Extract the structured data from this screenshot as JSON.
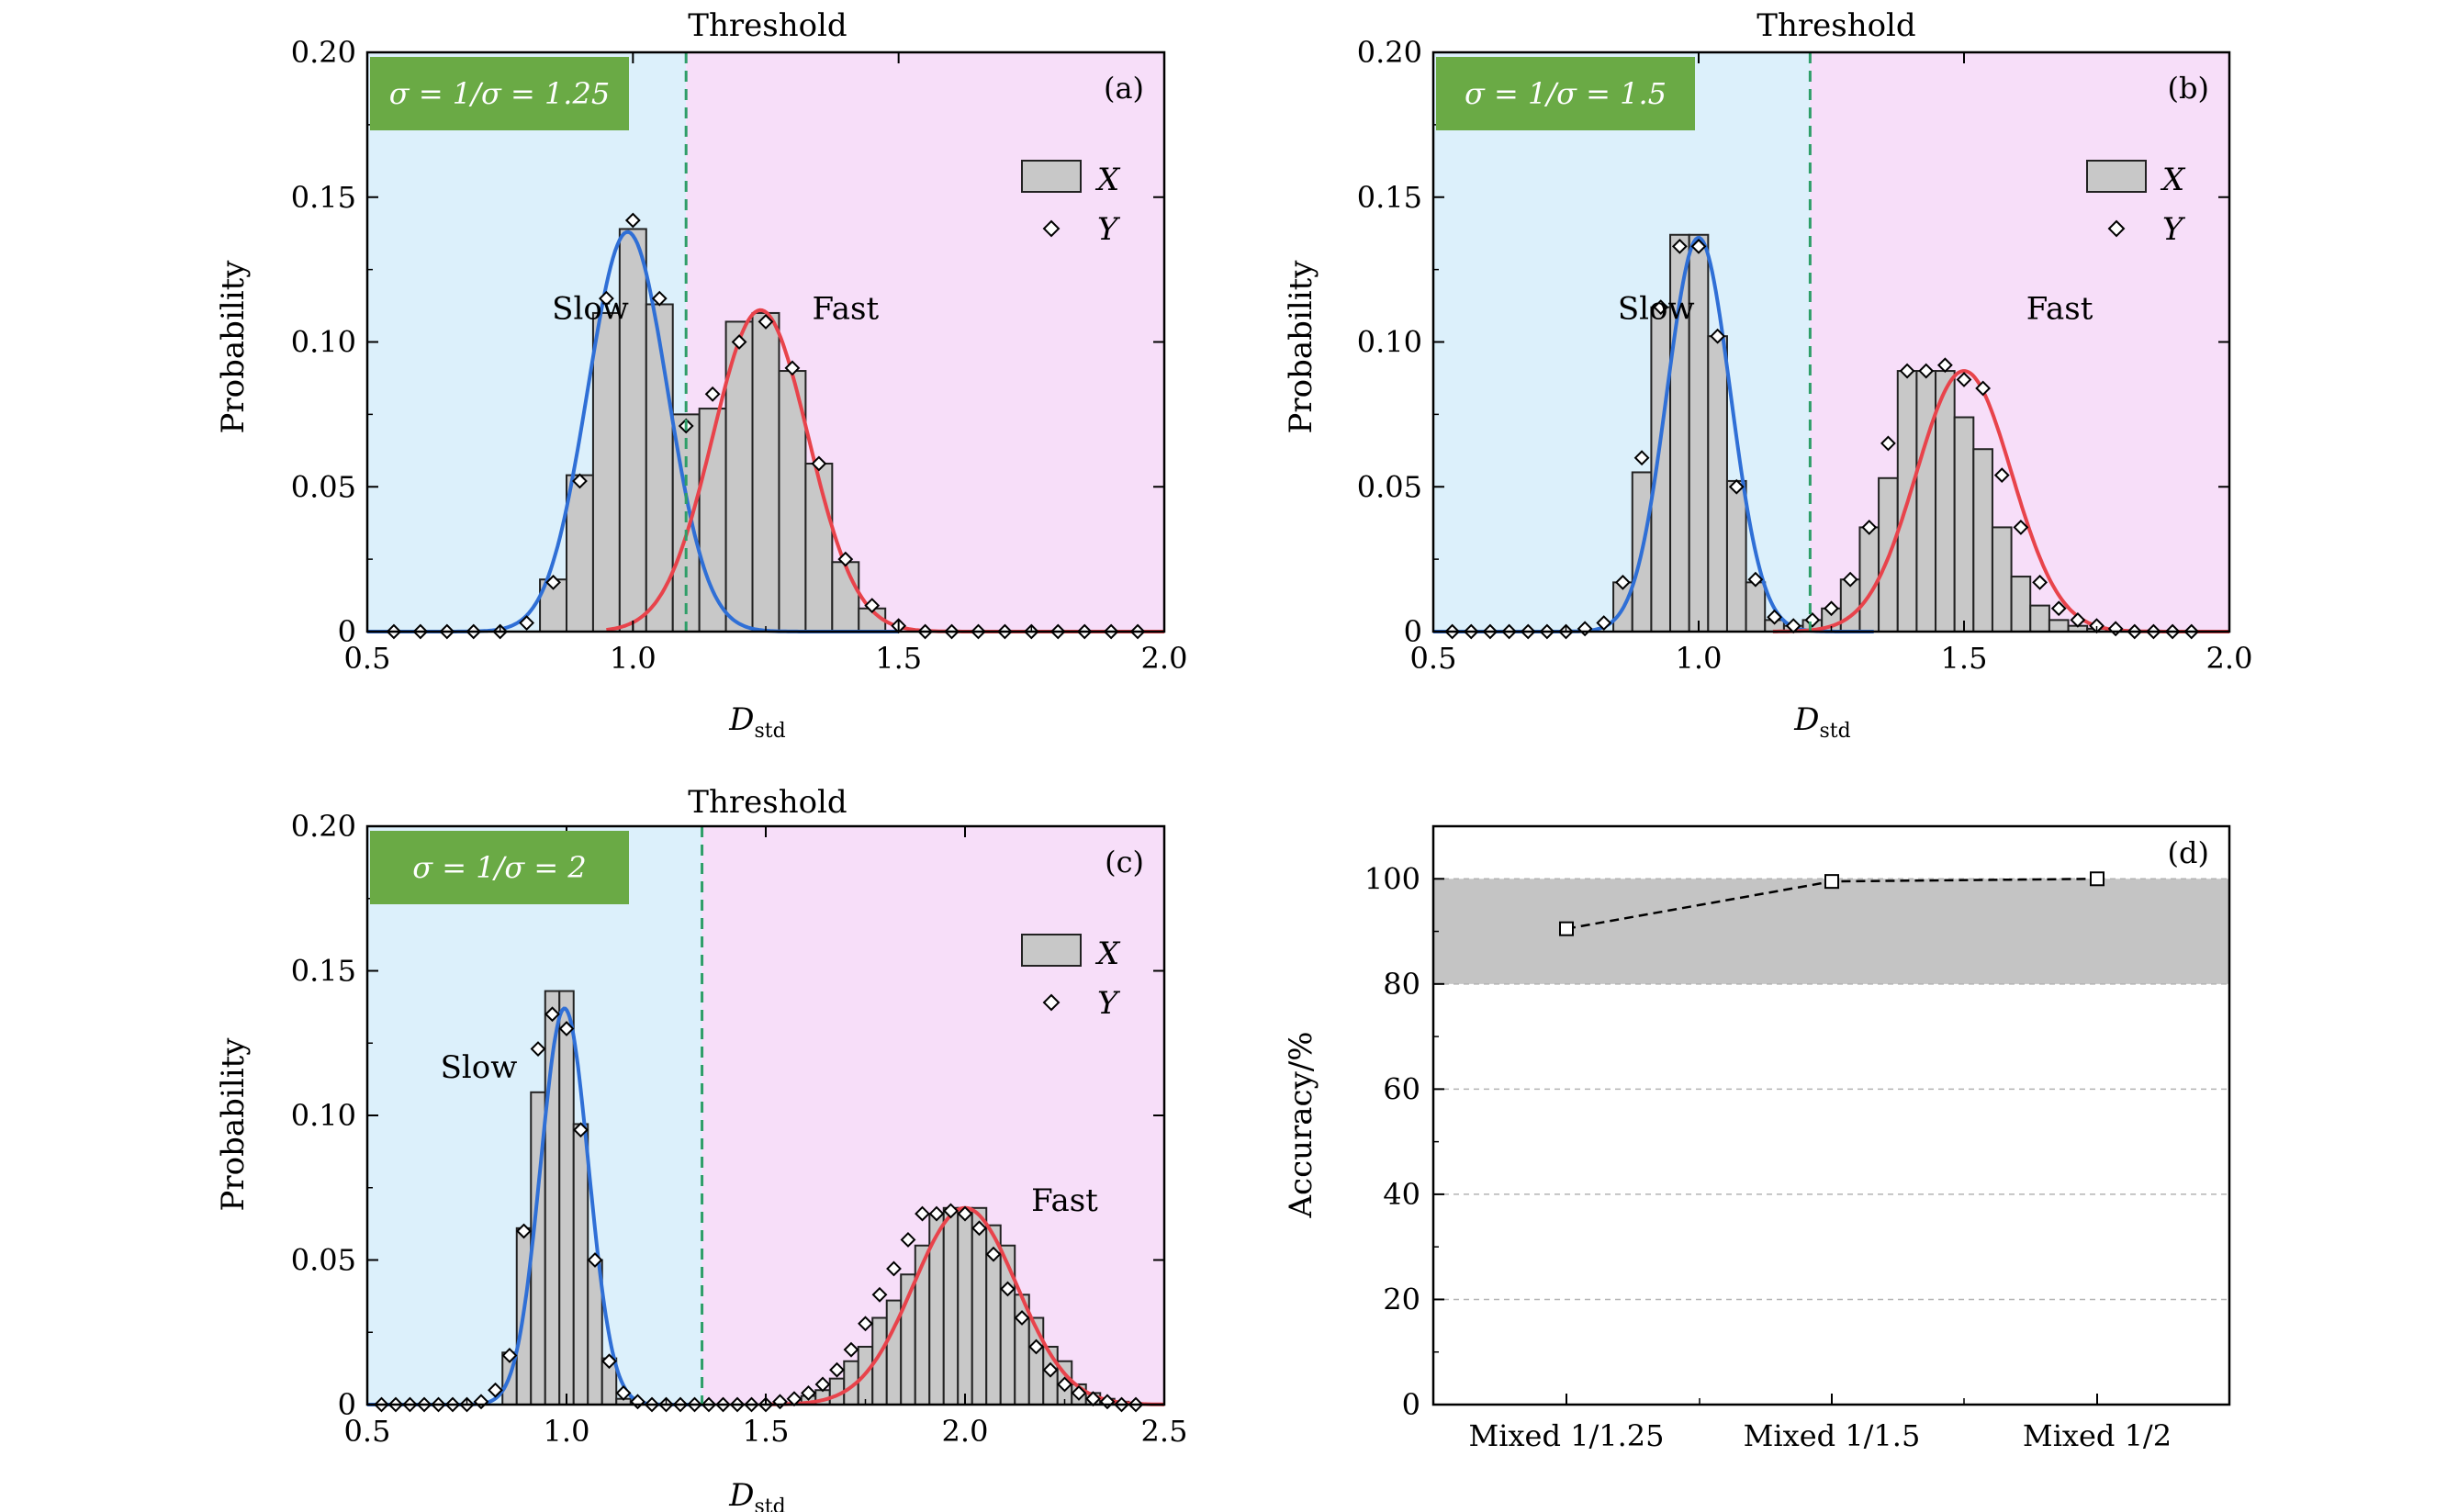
{
  "colors": {
    "slow_region": "#dcf0fb",
    "fast_region": "#f7def9",
    "bar_fill": "#c8c8c8",
    "bar_stroke": "#222222",
    "slow_curve": "#2f6fd6",
    "fast_curve": "#e8434b",
    "threshold": "#2e9e68",
    "badge": "#6aaa45",
    "accuracy_band": "#c4c4c4",
    "grid": "#b4b4b4"
  },
  "chart_data": [
    {
      "panel": "(a)",
      "type": "bar",
      "badge": "σ = 1/σ = 1.25",
      "threshold_label": "Threshold",
      "threshold_x": 1.1,
      "xlabel": "D",
      "xlabel_sub": "std",
      "ylabel": "Probability",
      "xlim": [
        0.5,
        2.0
      ],
      "ylim": [
        0,
        0.2
      ],
      "xticks": [
        0.5,
        1.0,
        1.5,
        2.0
      ],
      "xtick_labels": [
        "0.5",
        "1.0",
        "1.5",
        "2.0"
      ],
      "yticks": [
        0,
        0.05,
        0.1,
        0.15,
        0.2
      ],
      "ytick_labels": [
        "0",
        "0.05",
        "0.10",
        "0.15",
        "0.20"
      ],
      "slow_label": "Slow",
      "fast_label": "Fast",
      "slow_label_at": [
        0.92,
        0.108
      ],
      "fast_label_at": [
        1.4,
        0.108
      ],
      "legend": [
        "X",
        "Y"
      ],
      "bar_width": 0.05,
      "bars_x": [
        0.85,
        0.9,
        0.95,
        1.0,
        1.05,
        1.1,
        1.15,
        1.2,
        1.25,
        1.3,
        1.35,
        1.4,
        1.45
      ],
      "bars_y": [
        0.018,
        0.054,
        0.11,
        0.139,
        0.113,
        0.075,
        0.077,
        0.107,
        0.11,
        0.09,
        0.058,
        0.024,
        0.008
      ],
      "markers_x": [
        0.55,
        0.6,
        0.65,
        0.7,
        0.75,
        0.8,
        0.85,
        0.9,
        0.95,
        1.0,
        1.05,
        1.1,
        1.15,
        1.2,
        1.25,
        1.3,
        1.35,
        1.4,
        1.45,
        1.5,
        1.55,
        1.6,
        1.65,
        1.7,
        1.75,
        1.8,
        1.85,
        1.9,
        1.95
      ],
      "markers_y": [
        0,
        0,
        0,
        0,
        0,
        0.003,
        0.017,
        0.052,
        0.115,
        0.142,
        0.115,
        0.071,
        0.082,
        0.1,
        0.107,
        0.091,
        0.058,
        0.025,
        0.009,
        0.002,
        0,
        0,
        0,
        0,
        0,
        0,
        0,
        0,
        0
      ],
      "slow_fit": {
        "amp": 0.138,
        "mu": 0.99,
        "sigma": 0.075,
        "x": [
          0.5,
          1.5
        ]
      },
      "fast_fit": {
        "amp": 0.111,
        "mu": 1.24,
        "sigma": 0.09,
        "x": [
          0.95,
          2.0
        ]
      }
    },
    {
      "panel": "(b)",
      "type": "bar",
      "badge": "σ = 1/σ = 1.5",
      "threshold_label": "Threshold",
      "threshold_x": 1.21,
      "xlabel": "D",
      "xlabel_sub": "std",
      "ylabel": "Probability",
      "xlim": [
        0.5,
        2.0
      ],
      "ylim": [
        0,
        0.2
      ],
      "xticks": [
        0.5,
        1.0,
        1.5,
        2.0
      ],
      "xtick_labels": [
        "0.5",
        "1.0",
        "1.5",
        "2.0"
      ],
      "yticks": [
        0,
        0.05,
        0.1,
        0.15,
        0.2
      ],
      "ytick_labels": [
        "0",
        "0.05",
        "0.10",
        "0.15",
        "0.20"
      ],
      "slow_label": "Slow",
      "fast_label": "Fast",
      "slow_label_at": [
        0.92,
        0.108
      ],
      "fast_label_at": [
        1.68,
        0.108
      ],
      "legend": [
        "X",
        "Y"
      ],
      "bar_width": 0.0357,
      "bars_x": [
        0.8571,
        0.8929,
        0.9286,
        0.9643,
        1.0,
        1.0357,
        1.0714,
        1.1071,
        1.1429,
        1.1786,
        1.2143,
        1.25,
        1.2857,
        1.3214,
        1.3571,
        1.3929,
        1.4286,
        1.4643,
        1.5,
        1.5357,
        1.5714,
        1.6071,
        1.6429,
        1.6786,
        1.7143,
        1.75
      ],
      "bars_y": [
        0.017,
        0.055,
        0.112,
        0.137,
        0.137,
        0.102,
        0.052,
        0.017,
        0.004,
        0.002,
        0.004,
        0.008,
        0.018,
        0.036,
        0.053,
        0.09,
        0.09,
        0.09,
        0.074,
        0.063,
        0.036,
        0.019,
        0.009,
        0.004,
        0.002,
        0.001
      ],
      "markers_x": [
        0.5357,
        0.5714,
        0.6071,
        0.6429,
        0.6786,
        0.7143,
        0.75,
        0.7857,
        0.8214,
        0.8571,
        0.8929,
        0.9286,
        0.9643,
        1.0,
        1.0357,
        1.0714,
        1.1071,
        1.1429,
        1.1786,
        1.2143,
        1.25,
        1.2857,
        1.3214,
        1.3571,
        1.3929,
        1.4286,
        1.4643,
        1.5,
        1.5357,
        1.5714,
        1.6071,
        1.6429,
        1.6786,
        1.7143,
        1.75,
        1.7857,
        1.8214,
        1.8571,
        1.8929,
        1.9286
      ],
      "markers_y": [
        0,
        0,
        0,
        0,
        0,
        0,
        0,
        0.001,
        0.003,
        0.017,
        0.06,
        0.112,
        0.133,
        0.133,
        0.102,
        0.05,
        0.018,
        0.005,
        0.002,
        0.004,
        0.008,
        0.018,
        0.036,
        0.065,
        0.09,
        0.09,
        0.092,
        0.087,
        0.084,
        0.054,
        0.036,
        0.017,
        0.008,
        0.004,
        0.002,
        0.001,
        0,
        0,
        0,
        0
      ],
      "slow_fit": {
        "amp": 0.136,
        "mu": 1.0,
        "sigma": 0.06,
        "x": [
          0.5,
          1.33
        ]
      },
      "fast_fit": {
        "amp": 0.09,
        "mu": 1.5,
        "sigma": 0.09,
        "x": [
          1.14,
          2.0
        ]
      }
    },
    {
      "panel": "(c)",
      "type": "bar",
      "badge": "σ = 1/σ = 2",
      "threshold_label": "Threshold",
      "threshold_x": 1.34,
      "xlabel": "D",
      "xlabel_sub": "std",
      "ylabel": "Probability",
      "xlim": [
        0.5,
        2.5
      ],
      "ylim": [
        0,
        0.2
      ],
      "xticks": [
        0.5,
        1.0,
        1.5,
        2.0,
        2.5
      ],
      "xtick_labels": [
        "0.5",
        "1.0",
        "1.5",
        "2.0",
        "2.5"
      ],
      "yticks": [
        0,
        0.05,
        0.1,
        0.15,
        0.2
      ],
      "ytick_labels": [
        "0",
        "0.05",
        "0.10",
        "0.15",
        "0.20"
      ],
      "slow_label": "Slow",
      "fast_label": "Fast",
      "slow_label_at": [
        0.78,
        0.113
      ],
      "fast_label_at": [
        2.25,
        0.067
      ],
      "legend": [
        "X",
        "Y"
      ],
      "bar_width": 0.0357,
      "bars_x": [
        0.8571,
        0.8929,
        0.9286,
        0.9643,
        1.0,
        1.0357,
        1.0714,
        1.1071,
        1.1429,
        1.6071,
        1.6429,
        1.6786,
        1.7143,
        1.75,
        1.7857,
        1.8214,
        1.8571,
        1.8929,
        1.9286,
        1.9643,
        2.0,
        2.0357,
        2.0714,
        2.1071,
        2.1429,
        2.1786,
        2.2143,
        2.25,
        2.2857,
        2.3214,
        2.3571,
        2.3929
      ],
      "bars_y": [
        0.018,
        0.061,
        0.108,
        0.143,
        0.143,
        0.097,
        0.05,
        0.016,
        0.002,
        0.003,
        0.005,
        0.009,
        0.015,
        0.02,
        0.03,
        0.036,
        0.045,
        0.055,
        0.066,
        0.068,
        0.068,
        0.068,
        0.062,
        0.055,
        0.038,
        0.03,
        0.02,
        0.015,
        0.007,
        0.004,
        0.002,
        0.001
      ],
      "markers_x": [
        0.5357,
        0.5714,
        0.6071,
        0.6429,
        0.6786,
        0.7143,
        0.75,
        0.7857,
        0.8214,
        0.8571,
        0.8929,
        0.9286,
        0.9643,
        1.0,
        1.0357,
        1.0714,
        1.1071,
        1.1429,
        1.1786,
        1.2143,
        1.25,
        1.2857,
        1.3214,
        1.3571,
        1.3929,
        1.4286,
        1.4643,
        1.5,
        1.5357,
        1.5714,
        1.6071,
        1.6429,
        1.6786,
        1.7143,
        1.75,
        1.7857,
        1.8214,
        1.8571,
        1.8929,
        1.9286,
        1.9643,
        2.0,
        2.0357,
        2.0714,
        2.1071,
        2.1429,
        2.1786,
        2.2143,
        2.25,
        2.2857,
        2.3214,
        2.3571,
        2.3929,
        2.4286
      ],
      "markers_y": [
        0,
        0,
        0,
        0,
        0,
        0,
        0,
        0.001,
        0.005,
        0.017,
        0.06,
        0.123,
        0.135,
        0.13,
        0.095,
        0.05,
        0.015,
        0.004,
        0.001,
        0,
        0,
        0,
        0,
        0,
        0,
        0,
        0,
        0,
        0.001,
        0.002,
        0.004,
        0.007,
        0.012,
        0.019,
        0.028,
        0.038,
        0.047,
        0.057,
        0.066,
        0.066,
        0.067,
        0.066,
        0.061,
        0.052,
        0.04,
        0.03,
        0.02,
        0.012,
        0.007,
        0.004,
        0.002,
        0.001,
        0,
        0
      ],
      "slow_fit": {
        "amp": 0.137,
        "mu": 0.995,
        "sigma": 0.06,
        "x": [
          0.5,
          1.34
        ]
      },
      "fast_fit": {
        "amp": 0.068,
        "mu": 2.0,
        "sigma": 0.13,
        "x": [
          1.5,
          2.5
        ]
      }
    },
    {
      "panel": "(d)",
      "type": "line",
      "ylabel": "Accuracy/%",
      "categories": [
        "Mixed 1/1.25",
        "Mixed 1/1.5",
        "Mixed 1/2"
      ],
      "values": [
        90.5,
        99.5,
        100.0
      ],
      "ylim": [
        0,
        110
      ],
      "yticks": [
        0,
        20,
        40,
        60,
        80,
        100
      ],
      "ytick_labels": [
        "0",
        "20",
        "40",
        "60",
        "80",
        "100"
      ],
      "band": [
        80,
        100
      ],
      "grid_y": [
        20,
        40,
        60,
        80,
        100
      ]
    }
  ]
}
